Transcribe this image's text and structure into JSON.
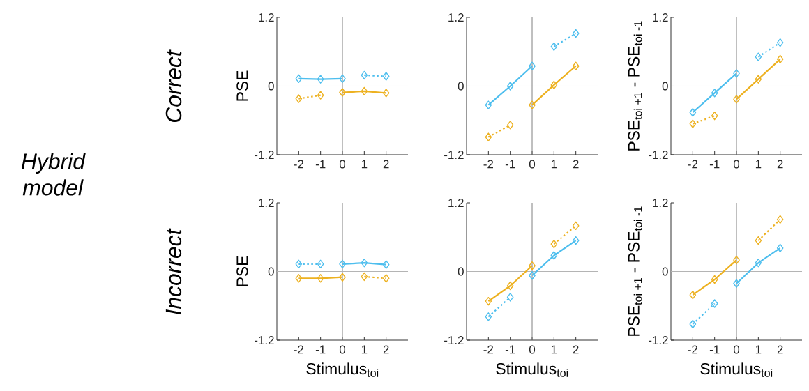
{
  "chart_data": [
    {
      "type": "line",
      "ylabel": "PSE",
      "annotations": [
        "*Hybrid model*",
        "*Correct*"
      ],
      "xlim": [
        -3,
        3
      ],
      "ylim": [
        -1.2,
        1.2
      ],
      "xticks": [
        -2,
        -1,
        0,
        1,
        2
      ],
      "yticks": [
        -1.2,
        0,
        1.2
      ],
      "marker": "diamond",
      "ref_lines": [
        {
          "axis": "x",
          "value": 0,
          "color": "#808080"
        },
        {
          "axis": "y",
          "value": 0,
          "color": "#b4b4b4"
        }
      ],
      "series": [
        {
          "color": "#4dbeee",
          "line_style": "solid",
          "x": [
            -2,
            -1,
            0
          ],
          "values": [
            0.13,
            0.12,
            0.13
          ]
        },
        {
          "color": "#4dbeee",
          "line_style": "dotted",
          "x": [
            1,
            2
          ],
          "values": [
            0.19,
            0.17
          ]
        },
        {
          "color": "#edb120",
          "line_style": "dotted",
          "x": [
            -2,
            -1
          ],
          "values": [
            -0.22,
            -0.16
          ]
        },
        {
          "color": "#edb120",
          "line_style": "solid",
          "x": [
            0,
            1,
            2
          ],
          "values": [
            -0.11,
            -0.09,
            -0.12
          ]
        }
      ]
    },
    {
      "type": "line",
      "xlim": [
        -3,
        3
      ],
      "ylim": [
        -1.2,
        1.2
      ],
      "xticks": [
        -2,
        -1,
        0,
        1,
        2
      ],
      "yticks": [
        -1.2,
        0,
        1.2
      ],
      "marker": "diamond",
      "ref_lines": [
        {
          "axis": "x",
          "value": 0,
          "color": "#808080"
        },
        {
          "axis": "y",
          "value": 0,
          "color": "#b4b4b4"
        }
      ],
      "series": [
        {
          "color": "#4dbeee",
          "line_style": "solid",
          "x": [
            -2,
            -1,
            0
          ],
          "values": [
            -0.33,
            0.0,
            0.35
          ]
        },
        {
          "color": "#4dbeee",
          "line_style": "dotted",
          "x": [
            1,
            2
          ],
          "values": [
            0.69,
            0.92
          ]
        },
        {
          "color": "#edb120",
          "line_style": "dotted",
          "x": [
            -2,
            -1
          ],
          "values": [
            -0.89,
            -0.68
          ]
        },
        {
          "color": "#edb120",
          "line_style": "solid",
          "x": [
            0,
            1,
            2
          ],
          "values": [
            -0.33,
            0.02,
            0.35
          ]
        }
      ]
    },
    {
      "type": "line",
      "ylabel": "PSE$_{toi +1}$ - PSE$_{toi -1}$",
      "xlim": [
        -3,
        3
      ],
      "ylim": [
        -1.2,
        1.2
      ],
      "xticks": [
        -2,
        -1,
        0,
        1,
        2
      ],
      "yticks": [
        -1.2,
        0,
        1.2
      ],
      "marker": "diamond",
      "ref_lines": [
        {
          "axis": "x",
          "value": 0,
          "color": "#808080"
        },
        {
          "axis": "y",
          "value": 0,
          "color": "#b4b4b4"
        }
      ],
      "series": [
        {
          "color": "#4dbeee",
          "line_style": "solid",
          "x": [
            -2,
            -1,
            0
          ],
          "values": [
            -0.46,
            -0.12,
            0.22
          ]
        },
        {
          "color": "#4dbeee",
          "line_style": "dotted",
          "x": [
            1,
            2
          ],
          "values": [
            0.51,
            0.76
          ]
        },
        {
          "color": "#edb120",
          "line_style": "dotted",
          "x": [
            -2,
            -1
          ],
          "values": [
            -0.66,
            -0.52
          ]
        },
        {
          "color": "#edb120",
          "line_style": "solid",
          "x": [
            0,
            1,
            2
          ],
          "values": [
            -0.23,
            0.12,
            0.47
          ]
        }
      ]
    },
    {
      "type": "line",
      "ylabel": "PSE",
      "xlabel": "Stimulus$_{toi}$",
      "annotations": [
        "*Incorrect*"
      ],
      "xlim": [
        -3,
        3
      ],
      "ylim": [
        -1.2,
        1.2
      ],
      "xticks": [
        -2,
        -1,
        0,
        1,
        2
      ],
      "yticks": [
        -1.2,
        0,
        1.2
      ],
      "marker": "diamond",
      "ref_lines": [
        {
          "axis": "x",
          "value": 0,
          "color": "#808080"
        },
        {
          "axis": "y",
          "value": 0,
          "color": "#b4b4b4"
        }
      ],
      "series": [
        {
          "color": "#4dbeee",
          "line_style": "dotted",
          "x": [
            -2,
            -1
          ],
          "values": [
            0.13,
            0.13
          ]
        },
        {
          "color": "#4dbeee",
          "line_style": "solid",
          "x": [
            0,
            1,
            2
          ],
          "values": [
            0.13,
            0.15,
            0.12
          ]
        },
        {
          "color": "#edb120",
          "line_style": "solid",
          "x": [
            -2,
            -1,
            0
          ],
          "values": [
            -0.12,
            -0.12,
            -0.1
          ]
        },
        {
          "color": "#edb120",
          "line_style": "dotted",
          "x": [
            1,
            2
          ],
          "values": [
            -0.09,
            -0.12
          ]
        }
      ]
    },
    {
      "type": "line",
      "xlabel": "Stimulus$_{toi}$",
      "xlim": [
        -3,
        3
      ],
      "ylim": [
        -1.2,
        1.2
      ],
      "xticks": [
        -2,
        -1,
        0,
        1,
        2
      ],
      "yticks": [
        -1.2,
        0,
        1.2
      ],
      "marker": "diamond",
      "ref_lines": [
        {
          "axis": "x",
          "value": 0,
          "color": "#808080"
        },
        {
          "axis": "y",
          "value": 0,
          "color": "#b4b4b4"
        }
      ],
      "series": [
        {
          "color": "#edb120",
          "line_style": "solid",
          "x": [
            -2,
            -1,
            0
          ],
          "values": [
            -0.52,
            -0.25,
            0.1
          ]
        },
        {
          "color": "#edb120",
          "line_style": "dotted",
          "x": [
            1,
            2
          ],
          "values": [
            0.48,
            0.8
          ]
        },
        {
          "color": "#4dbeee",
          "line_style": "dotted",
          "x": [
            -2,
            -1
          ],
          "values": [
            -0.79,
            -0.45
          ]
        },
        {
          "color": "#4dbeee",
          "line_style": "solid",
          "x": [
            0,
            1,
            2
          ],
          "values": [
            -0.07,
            0.28,
            0.54
          ]
        }
      ]
    },
    {
      "type": "line",
      "ylabel": "PSE$_{toi +1}$ - PSE$_{toi -1}$",
      "xlabel": "Stimulus$_{toi}$",
      "xlim": [
        -3,
        3
      ],
      "ylim": [
        -1.2,
        1.2
      ],
      "xticks": [
        -2,
        -1,
        0,
        1,
        2
      ],
      "yticks": [
        -1.2,
        0,
        1.2
      ],
      "marker": "diamond",
      "ref_lines": [
        {
          "axis": "x",
          "value": 0,
          "color": "#808080"
        },
        {
          "axis": "y",
          "value": 0,
          "color": "#b4b4b4"
        }
      ],
      "series": [
        {
          "color": "#edb120",
          "line_style": "solid",
          "x": [
            -2,
            -1,
            0
          ],
          "values": [
            -0.41,
            -0.14,
            0.2
          ]
        },
        {
          "color": "#edb120",
          "line_style": "dotted",
          "x": [
            1,
            2
          ],
          "values": [
            0.54,
            0.91
          ]
        },
        {
          "color": "#4dbeee",
          "line_style": "dotted",
          "x": [
            -2,
            -1
          ],
          "values": [
            -0.92,
            -0.56
          ]
        },
        {
          "color": "#4dbeee",
          "line_style": "solid",
          "x": [
            0,
            1,
            2
          ],
          "values": [
            -0.21,
            0.15,
            0.41
          ]
        }
      ]
    }
  ]
}
